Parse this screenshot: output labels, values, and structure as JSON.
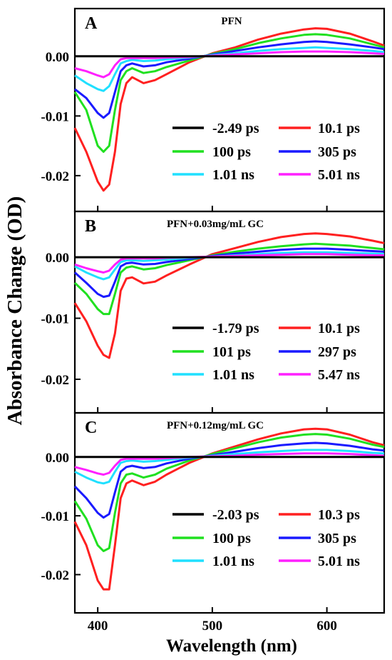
{
  "figure": {
    "ylabel": "Absorbance Change (OD)",
    "xlabel": "Wavelength (nm)"
  },
  "chart_data": [
    {
      "type": "line",
      "panel": "A",
      "title": "PFN",
      "xlabel": "Wavelength (nm)",
      "ylabel": "Absorbance Change (OD)",
      "xlim": [
        380,
        650
      ],
      "ylim": [
        -0.026,
        0.008
      ],
      "x_ticks": [
        400,
        500,
        600
      ],
      "y_ticks": [
        0.0,
        -0.01,
        -0.02
      ],
      "y_tick_labels": [
        "0.00",
        "-0.01",
        "-0.02"
      ],
      "legend_position": "lower-right",
      "x": [
        380,
        390,
        400,
        405,
        410,
        415,
        420,
        425,
        430,
        440,
        450,
        460,
        480,
        500,
        520,
        540,
        560,
        580,
        590,
        600,
        620,
        640,
        650
      ],
      "series": [
        {
          "name": "-2.49 ps",
          "color": "#000000",
          "values": [
            0,
            0,
            0,
            0,
            0,
            0,
            0,
            0,
            0,
            0,
            0,
            0,
            0,
            0,
            0,
            0,
            0,
            0,
            0,
            0,
            0,
            0,
            0
          ]
        },
        {
          "name": "10.1 ps",
          "color": "#ff2020",
          "values": [
            -0.012,
            -0.016,
            -0.021,
            -0.0225,
            -0.0215,
            -0.016,
            -0.008,
            -0.0045,
            -0.0035,
            -0.0045,
            -0.004,
            -0.003,
            -0.001,
            0.0005,
            0.0015,
            0.0028,
            0.0038,
            0.0045,
            0.0047,
            0.0046,
            0.0038,
            0.0025,
            0.0018
          ]
        },
        {
          "name": "100 ps",
          "color": "#20e020",
          "values": [
            -0.006,
            -0.009,
            -0.015,
            -0.016,
            -0.015,
            -0.009,
            -0.004,
            -0.0025,
            -0.002,
            -0.0028,
            -0.0025,
            -0.0018,
            -0.0007,
            0.0004,
            0.0012,
            0.0022,
            0.003,
            0.0036,
            0.0037,
            0.0036,
            0.003,
            0.002,
            0.0015
          ]
        },
        {
          "name": "305 ps",
          "color": "#1a1aff",
          "values": [
            -0.0055,
            -0.007,
            -0.0095,
            -0.0103,
            -0.0095,
            -0.006,
            -0.0025,
            -0.0015,
            -0.0012,
            -0.0017,
            -0.0015,
            -0.001,
            -0.0004,
            0.0003,
            0.0009,
            0.0015,
            0.002,
            0.0024,
            0.0025,
            0.0024,
            0.002,
            0.0015,
            0.0012
          ]
        },
        {
          "name": "1.01 ns",
          "color": "#20e0ff",
          "values": [
            -0.0032,
            -0.0045,
            -0.0055,
            -0.0058,
            -0.005,
            -0.003,
            -0.0012,
            -0.0008,
            -0.0006,
            -0.0008,
            -0.0007,
            -0.0005,
            -0.0002,
            0.0002,
            0.0005,
            0.0009,
            0.0012,
            0.0014,
            0.0015,
            0.0014,
            0.0012,
            0.0009,
            0.0007
          ]
        },
        {
          "name": "5.01 ns",
          "color": "#ff20ff",
          "values": [
            -0.002,
            -0.0025,
            -0.0032,
            -0.0035,
            -0.003,
            -0.0015,
            -0.0005,
            -0.0003,
            -0.0003,
            -0.0003,
            -0.0003,
            -0.0002,
            -0.0001,
            0.0001,
            0.0003,
            0.0005,
            0.0007,
            0.0008,
            0.0008,
            0.0008,
            0.0007,
            0.0005,
            0.0004
          ]
        }
      ]
    },
    {
      "type": "line",
      "panel": "B",
      "title": "PFN+0.03mg/mL GC",
      "xlabel": "Wavelength (nm)",
      "ylabel": "Absorbance Change (OD)",
      "xlim": [
        380,
        650
      ],
      "ylim": [
        -0.0255,
        0.0075
      ],
      "x_ticks": [
        400,
        500,
        600
      ],
      "y_ticks": [
        0.0,
        -0.01,
        -0.02
      ],
      "y_tick_labels": [
        "0.00",
        "-0.01",
        "-0.02"
      ],
      "legend_position": "lower-right",
      "x": [
        380,
        390,
        400,
        405,
        410,
        415,
        420,
        425,
        430,
        440,
        450,
        460,
        480,
        500,
        520,
        540,
        560,
        580,
        590,
        600,
        620,
        640,
        650
      ],
      "series": [
        {
          "name": "-1.79 ps",
          "color": "#000000",
          "values": [
            0,
            0,
            0,
            0,
            0,
            0,
            0,
            0,
            0,
            0,
            0,
            0,
            0,
            0,
            0,
            0,
            0,
            0,
            0,
            0,
            0,
            0,
            0
          ]
        },
        {
          "name": "10.1 ps",
          "color": "#ff2020",
          "values": [
            -0.0075,
            -0.0105,
            -0.0145,
            -0.016,
            -0.0165,
            -0.0125,
            -0.0055,
            -0.0035,
            -0.0033,
            -0.0043,
            -0.004,
            -0.003,
            -0.0012,
            0.0005,
            0.0015,
            0.0025,
            0.0033,
            0.0038,
            0.0039,
            0.0038,
            0.0034,
            0.0027,
            0.0023
          ]
        },
        {
          "name": "101 ps",
          "color": "#20e020",
          "values": [
            -0.0042,
            -0.006,
            -0.0085,
            -0.0093,
            -0.0093,
            -0.006,
            -0.0025,
            -0.0017,
            -0.0015,
            -0.002,
            -0.0018,
            -0.0013,
            -0.0005,
            0.0003,
            0.0009,
            0.0014,
            0.0018,
            0.0021,
            0.0022,
            0.0021,
            0.0019,
            0.0015,
            0.0013
          ]
        },
        {
          "name": "297 ps",
          "color": "#1a1aff",
          "values": [
            -0.0025,
            -0.0042,
            -0.006,
            -0.0065,
            -0.0063,
            -0.004,
            -0.0015,
            -0.001,
            -0.0009,
            -0.0012,
            -0.0011,
            -0.0008,
            -0.0003,
            0.0002,
            0.0006,
            0.0009,
            0.0012,
            0.0014,
            0.0014,
            0.0014,
            0.0012,
            0.001,
            0.0009
          ]
        },
        {
          "name": "1.01 ns",
          "color": "#20e0ff",
          "values": [
            -0.0015,
            -0.0025,
            -0.0033,
            -0.0036,
            -0.0033,
            -0.002,
            -0.0008,
            -0.0005,
            -0.0005,
            -0.0006,
            -0.0005,
            -0.0004,
            -0.0001,
            0.0001,
            0.0003,
            0.0005,
            0.0007,
            0.0008,
            0.0008,
            0.0008,
            0.0007,
            0.0006,
            0.0005
          ]
        },
        {
          "name": "5.47 ns",
          "color": "#ff20ff",
          "values": [
            -0.0012,
            -0.0018,
            -0.0023,
            -0.0025,
            -0.0022,
            -0.0012,
            -0.0004,
            -0.0002,
            -0.0002,
            -0.0002,
            -0.0002,
            -0.0001,
            0,
            0.0001,
            0.0002,
            0.0003,
            0.0004,
            0.0005,
            0.0005,
            0.0005,
            0.0004,
            0.0003,
            0.0003
          ]
        }
      ]
    },
    {
      "type": "line",
      "panel": "C",
      "title": "PFN+0.12mg/mL GC",
      "xlabel": "Wavelength (nm)",
      "ylabel": "Absorbance Change (OD)",
      "xlim": [
        380,
        650
      ],
      "ylim": [
        -0.0265,
        0.0075
      ],
      "x_ticks": [
        400,
        500,
        600
      ],
      "y_ticks": [
        0.0,
        -0.01,
        -0.02
      ],
      "y_tick_labels": [
        "0.00",
        "-0.01",
        "-0.02"
      ],
      "legend_position": "lower-right",
      "x": [
        380,
        390,
        400,
        405,
        410,
        415,
        420,
        425,
        430,
        440,
        450,
        460,
        480,
        500,
        520,
        540,
        560,
        580,
        590,
        600,
        620,
        640,
        650
      ],
      "series": [
        {
          "name": "-2.03 ps",
          "color": "#000000",
          "values": [
            0,
            0,
            0,
            0,
            0,
            0,
            0,
            0,
            0,
            0,
            0,
            0,
            0,
            0,
            0,
            0,
            0,
            0,
            0,
            0,
            0,
            0,
            0
          ]
        },
        {
          "name": "10.3 ps",
          "color": "#ff2020",
          "values": [
            -0.011,
            -0.015,
            -0.021,
            -0.0225,
            -0.0225,
            -0.015,
            -0.007,
            -0.0045,
            -0.004,
            -0.0048,
            -0.0042,
            -0.003,
            -0.001,
            0.0006,
            0.0018,
            0.003,
            0.004,
            0.0047,
            0.0048,
            0.0047,
            0.0038,
            0.0025,
            0.002
          ]
        },
        {
          "name": "100 ps",
          "color": "#20e020",
          "values": [
            -0.0075,
            -0.0105,
            -0.015,
            -0.016,
            -0.0155,
            -0.0095,
            -0.0045,
            -0.003,
            -0.0028,
            -0.0035,
            -0.003,
            -0.002,
            -0.0006,
            0.0005,
            0.0015,
            0.0025,
            0.0033,
            0.0038,
            0.0039,
            0.0038,
            0.0031,
            0.0021,
            0.0017
          ]
        },
        {
          "name": "305 ps",
          "color": "#1a1aff",
          "values": [
            -0.005,
            -0.007,
            -0.0095,
            -0.0103,
            -0.0097,
            -0.006,
            -0.0025,
            -0.0017,
            -0.0015,
            -0.0019,
            -0.0017,
            -0.0011,
            -0.0003,
            0.0003,
            0.0009,
            0.0015,
            0.002,
            0.0023,
            0.0024,
            0.0023,
            0.0019,
            0.0013,
            0.0011
          ]
        },
        {
          "name": "1.01 ns",
          "color": "#20e0ff",
          "values": [
            -0.0025,
            -0.0035,
            -0.0043,
            -0.0045,
            -0.0042,
            -0.0025,
            -0.001,
            -0.0007,
            -0.0006,
            -0.0008,
            -0.0007,
            -0.0005,
            -0.0001,
            0.0002,
            0.0005,
            0.0008,
            0.001,
            0.0012,
            0.0012,
            0.0012,
            0.001,
            0.0007,
            0.0006
          ]
        },
        {
          "name": "5.01 ns",
          "color": "#ff20ff",
          "values": [
            -0.0017,
            -0.0022,
            -0.0028,
            -0.003,
            -0.0027,
            -0.0015,
            -0.0005,
            -0.0003,
            -0.0003,
            -0.0003,
            -0.0003,
            -0.0002,
            0,
            0.0001,
            0.0002,
            0.0004,
            0.0005,
            0.0006,
            0.0006,
            0.0006,
            0.0005,
            0.0003,
            0.0002
          ]
        }
      ]
    }
  ]
}
